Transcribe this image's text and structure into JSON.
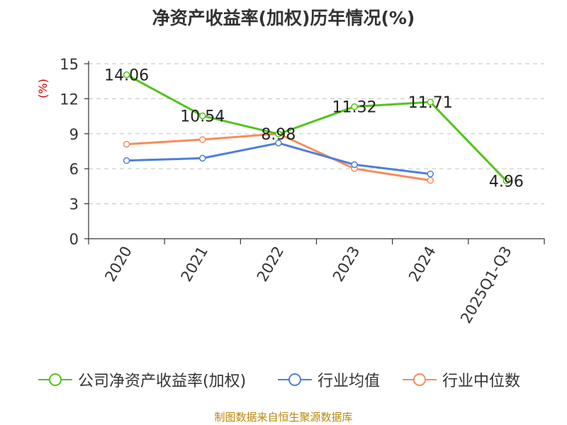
{
  "title": "净资产收益率(加权)历年情况(%)",
  "source_note": "制图数据来自恒生聚源数据库",
  "colors": {
    "series": [
      "#52c41a",
      "#4e7fd8",
      "#f58d5a"
    ],
    "unit": "#cc0000",
    "axis": "#333333",
    "grid": "#cccccc"
  },
  "chart_data": {
    "type": "line",
    "title": "净资产收益率(加权)历年情况(%)",
    "ylabel": "(%)",
    "xlabel": "",
    "categories": [
      "2020",
      "2021",
      "2022",
      "2023",
      "2024",
      "2025Q1-Q3"
    ],
    "ylim": [
      0,
      15
    ],
    "yticks": [
      0,
      3,
      6,
      9,
      12,
      15
    ],
    "grid": true,
    "legend_position": "bottom",
    "series": [
      {
        "name": "公司净资产收益率(加权)",
        "values": [
          14.06,
          10.54,
          8.98,
          11.32,
          11.71,
          4.96
        ],
        "labels": [
          "14.06",
          "10.54",
          "8.98",
          "11.32",
          "11.71",
          "4.96"
        ]
      },
      {
        "name": "行业均值",
        "values": [
          6.7,
          6.9,
          8.2,
          6.35,
          5.55,
          null
        ]
      },
      {
        "name": "行业中位数",
        "values": [
          8.1,
          8.5,
          9.0,
          6.0,
          5.0,
          null
        ]
      }
    ]
  }
}
